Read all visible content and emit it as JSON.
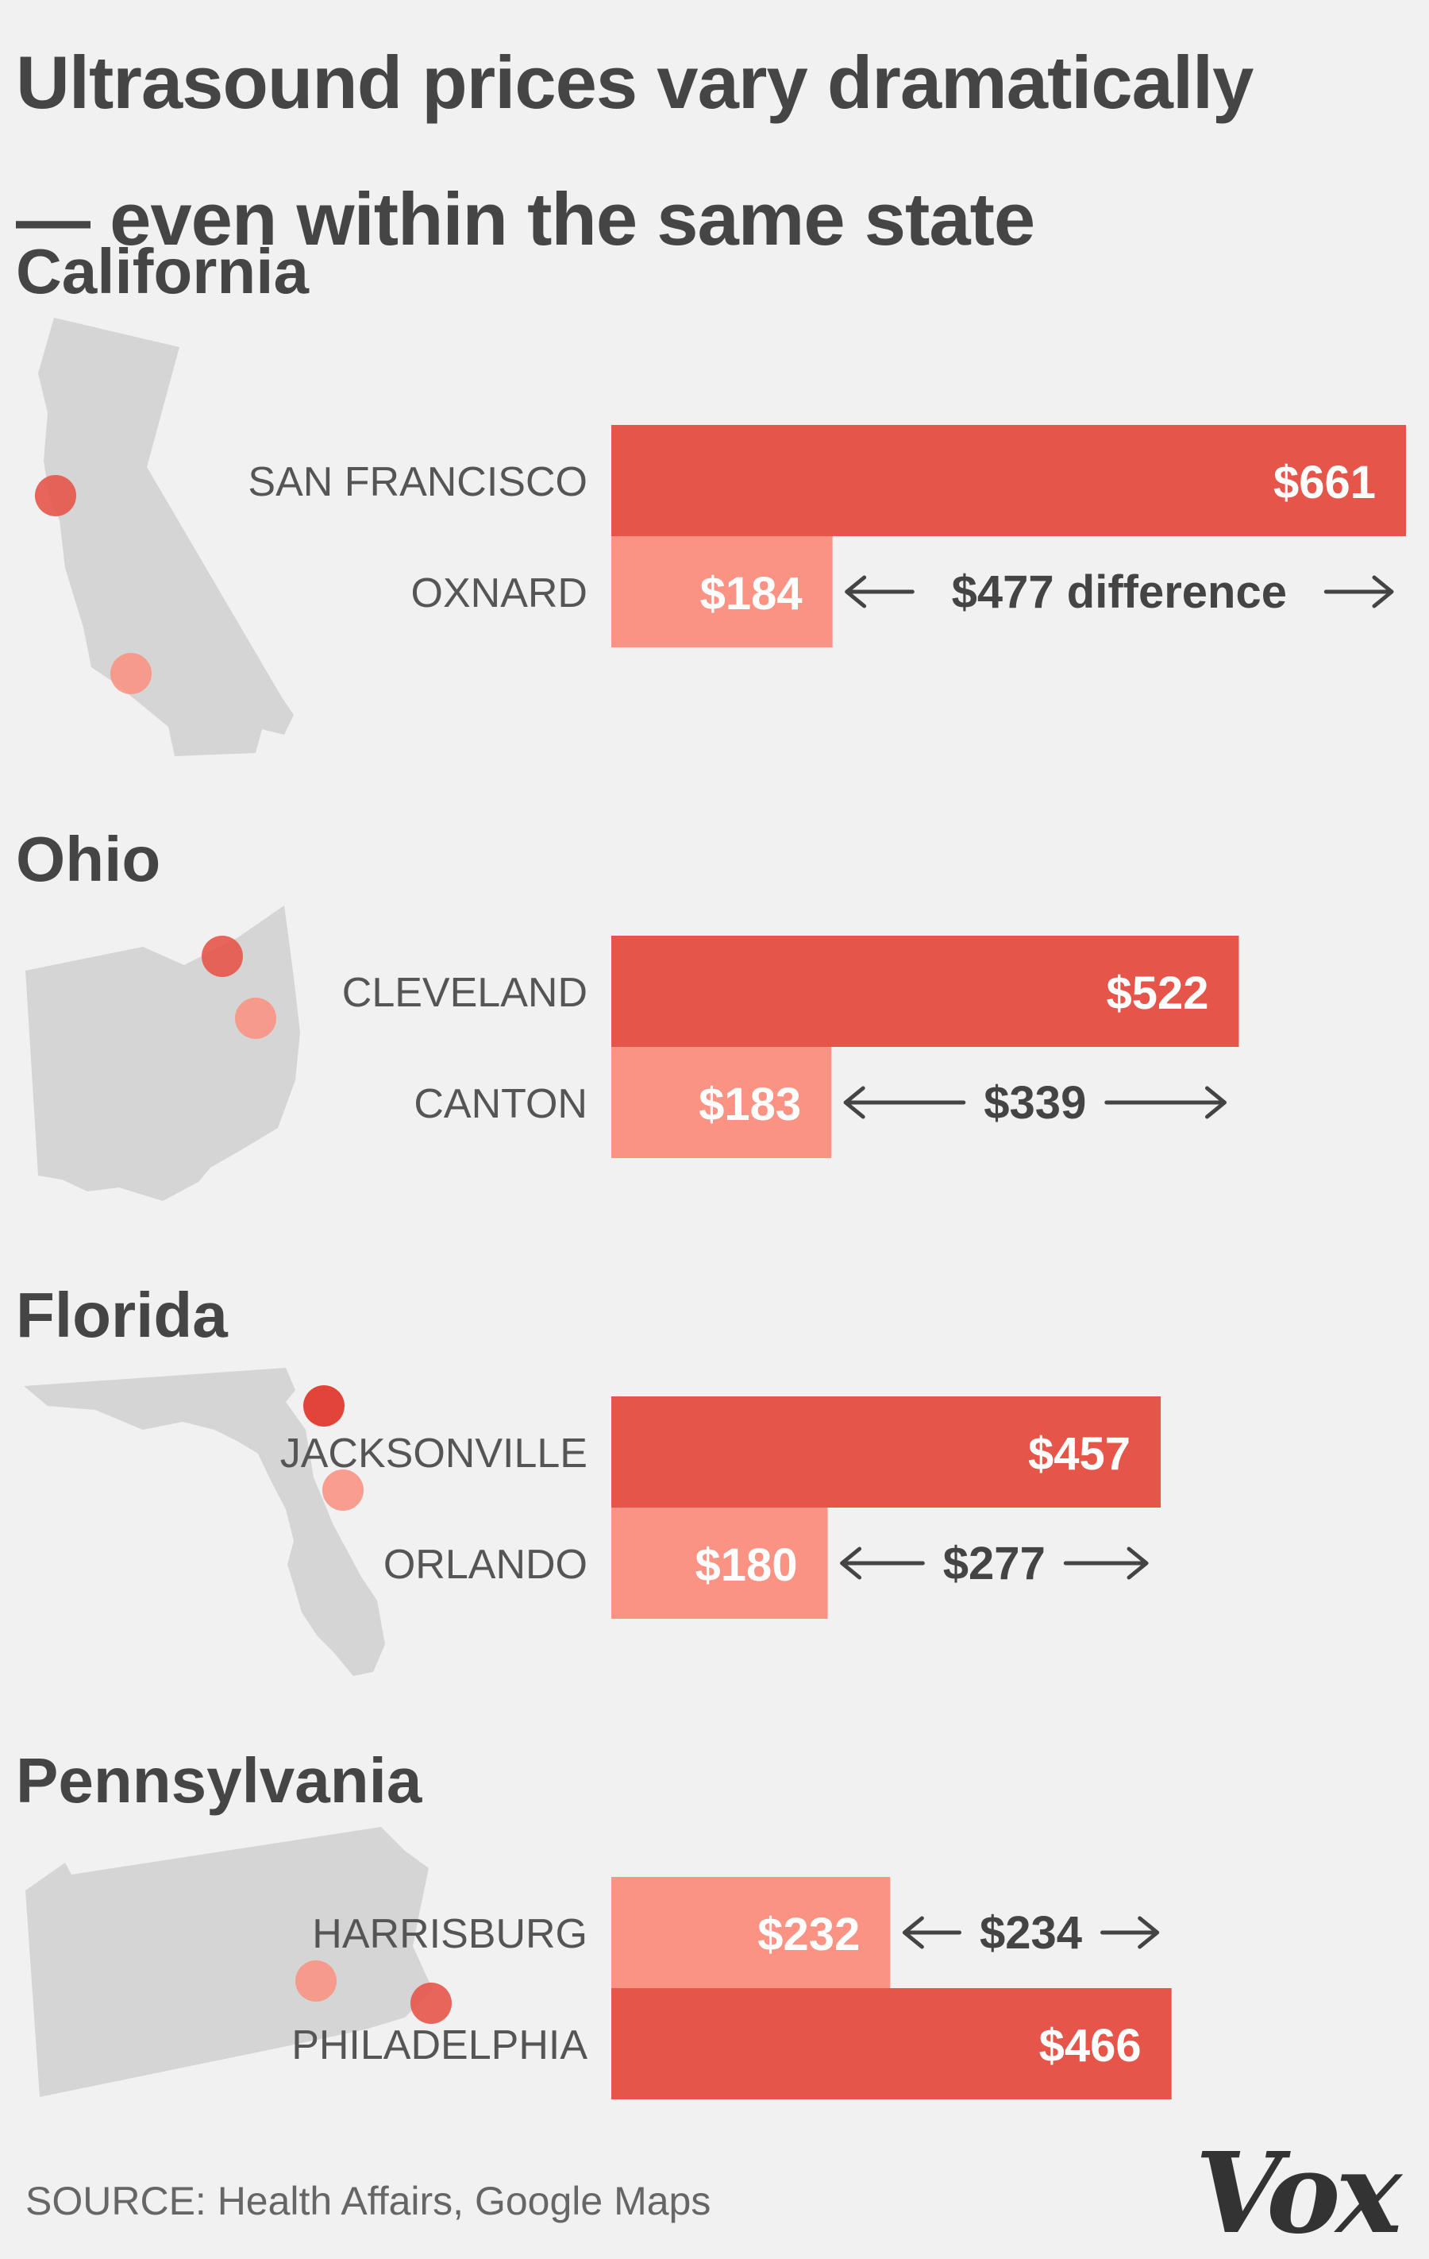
{
  "title_lines": [
    "Ultrasound prices vary dramatically",
    "— even within the same state"
  ],
  "source": "SOURCE: Health Affairs, Google Maps",
  "logo": "Vox",
  "colors": {
    "high": "#e5554a",
    "low": "#fa9384",
    "map": "#d5d5d5",
    "background": "#f0f1f0",
    "text": "#454545"
  },
  "chart_data": [
    {
      "type": "bar",
      "state": "California",
      "categories": [
        "SAN FRANCISCO",
        "OXNARD"
      ],
      "values": [
        661,
        184
      ],
      "value_labels": [
        "$661",
        "$184"
      ],
      "difference_label": "$477 difference",
      "map_icon": "california-map-icon"
    },
    {
      "type": "bar",
      "state": "Ohio",
      "categories": [
        "CLEVELAND",
        "CANTON"
      ],
      "values": [
        522,
        183
      ],
      "value_labels": [
        "$522",
        "$183"
      ],
      "difference_label": "$339",
      "map_icon": "ohio-map-icon"
    },
    {
      "type": "bar",
      "state": "Florida",
      "categories": [
        "JACKSONVILLE",
        "ORLANDO"
      ],
      "values": [
        457,
        180
      ],
      "value_labels": [
        "$457",
        "$180"
      ],
      "difference_label": "$277",
      "map_icon": "florida-map-icon"
    },
    {
      "type": "bar",
      "state": "Pennsylvania",
      "categories": [
        "HARRISBURG",
        "PHILADELPHIA"
      ],
      "values": [
        232,
        466
      ],
      "value_labels": [
        "$232",
        "$466"
      ],
      "difference_label": "$234",
      "map_icon": "pennsylvania-map-icon"
    }
  ]
}
